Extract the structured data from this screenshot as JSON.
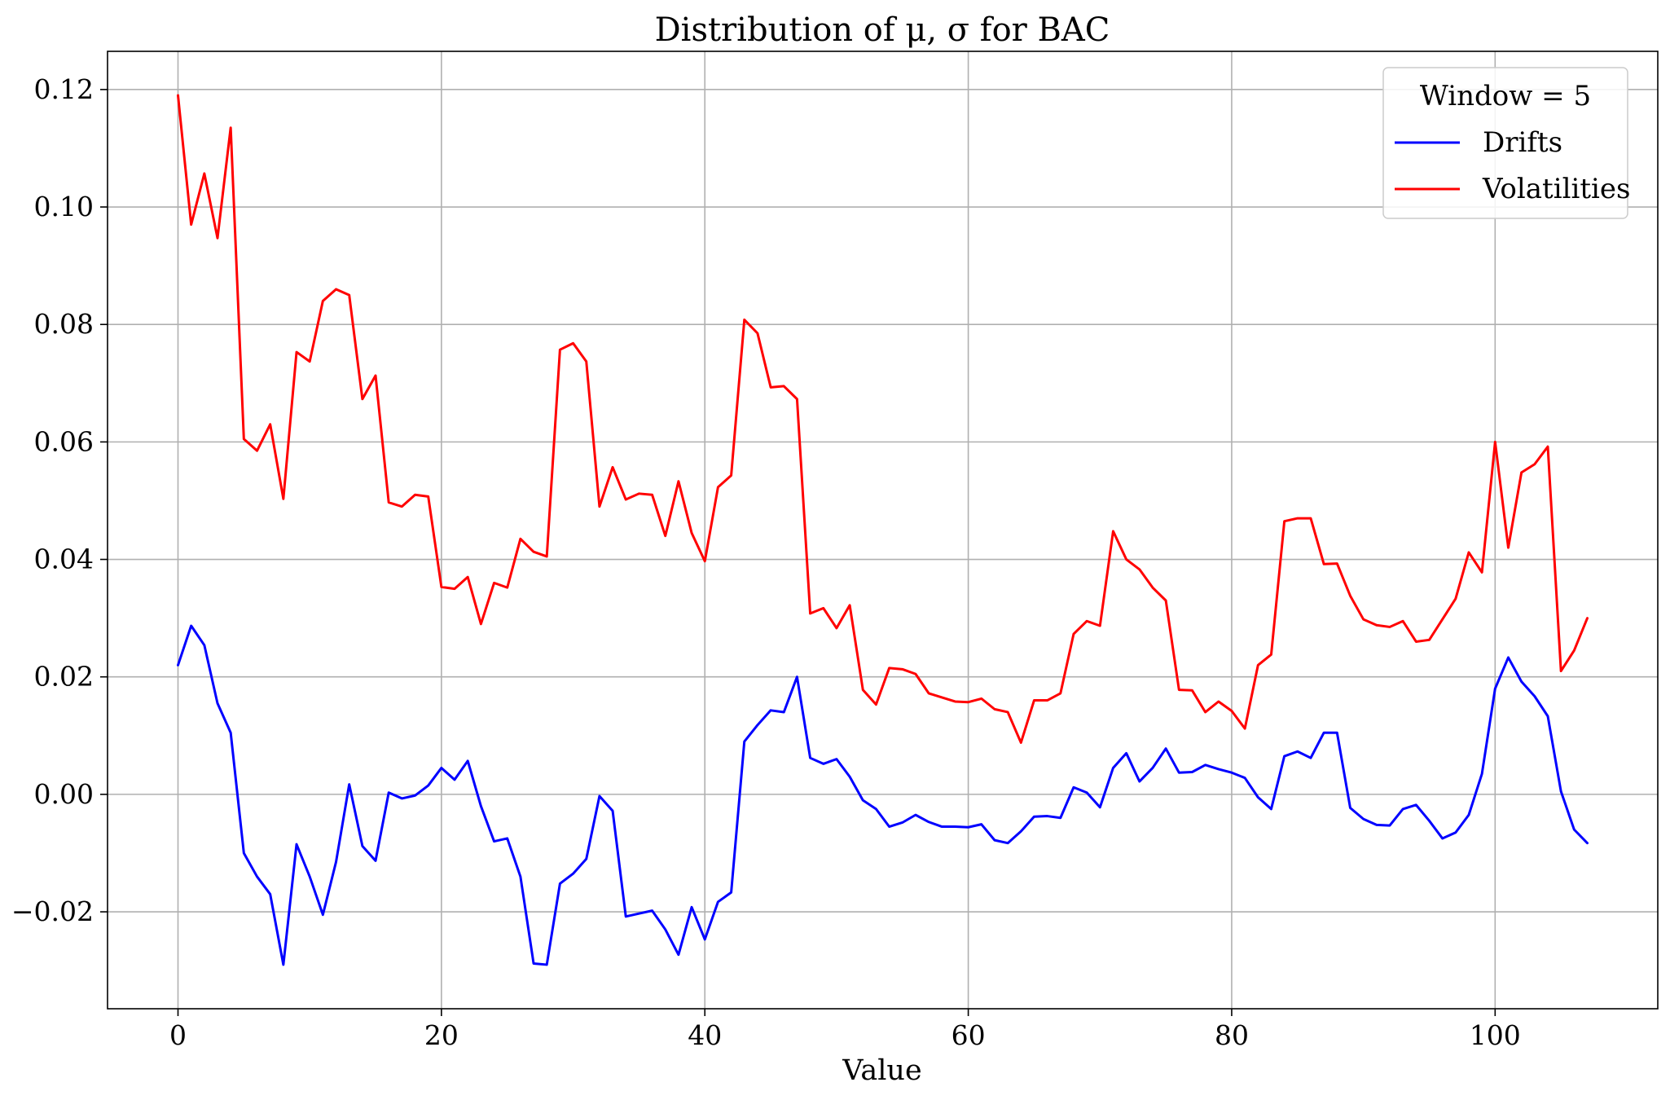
{
  "chart_data": {
    "type": "line",
    "title": "Distribution of μ, σ for BAC",
    "xlabel": "Value",
    "ylabel": "",
    "xlim": [
      -5.35,
      112.35
    ],
    "ylim": [
      -0.0365,
      0.1265
    ],
    "xticks": [
      0,
      20,
      40,
      60,
      80,
      100
    ],
    "yticks": [
      -0.02,
      0.0,
      0.02,
      0.04,
      0.06,
      0.08,
      0.1,
      0.12
    ],
    "ytick_labels": [
      "−0.02",
      "0.00",
      "0.02",
      "0.04",
      "0.06",
      "0.08",
      "0.10",
      "0.12"
    ],
    "grid": true,
    "legend": {
      "title": "Window = 5",
      "placement": "top-right"
    },
    "series": [
      {
        "name": "Drifts",
        "color": "#0000ff",
        "values": [
          0.022,
          0.0287,
          0.0254,
          0.0155,
          0.0105,
          -0.01,
          -0.014,
          -0.017,
          -0.029,
          -0.0085,
          -0.014,
          -0.0205,
          -0.0115,
          0.0017,
          -0.0088,
          -0.0113,
          0.0003,
          -0.0007,
          -0.0002,
          0.0015,
          0.0045,
          0.0025,
          0.0057,
          -0.002,
          -0.008,
          -0.0075,
          -0.014,
          -0.0288,
          -0.029,
          -0.0152,
          -0.0135,
          -0.011,
          -0.0003,
          -0.0028,
          -0.0208,
          -0.0203,
          -0.0198,
          -0.023,
          -0.0273,
          -0.0192,
          -0.0247,
          -0.0183,
          -0.0167,
          0.009,
          0.0118,
          0.0143,
          0.014,
          0.02,
          0.0062,
          0.0052,
          0.006,
          0.003,
          -0.001,
          -0.0025,
          -0.0055,
          -0.0048,
          -0.0035,
          -0.0047,
          -0.0055,
          -0.0055,
          -0.0056,
          -0.0051,
          -0.0078,
          -0.0083,
          -0.0063,
          -0.0038,
          -0.0037,
          -0.004,
          0.0012,
          0.0003,
          -0.0022,
          0.0045,
          0.007,
          0.0022,
          0.0045,
          0.0078,
          0.0037,
          0.0038,
          0.005,
          0.0043,
          0.0037,
          0.0028,
          -0.0005,
          -0.0025,
          0.0065,
          0.0073,
          0.0062,
          0.0105,
          0.0105,
          -0.0023,
          -0.0042,
          -0.0052,
          -0.0053,
          -0.0025,
          -0.0018,
          -0.0045,
          -0.0075,
          -0.0065,
          -0.0035,
          0.0035,
          0.018,
          0.0233,
          0.0192,
          0.0167,
          0.0133,
          0.0005,
          -0.006,
          -0.0083
        ]
      },
      {
        "name": "Volatilities",
        "color": "#ff0000",
        "values": [
          0.119,
          0.097,
          0.1057,
          0.0947,
          0.1135,
          0.0605,
          0.0585,
          0.063,
          0.0503,
          0.0753,
          0.0737,
          0.084,
          0.086,
          0.085,
          0.0673,
          0.0713,
          0.0497,
          0.049,
          0.051,
          0.0507,
          0.0353,
          0.035,
          0.037,
          0.029,
          0.036,
          0.0352,
          0.0435,
          0.0413,
          0.0405,
          0.0757,
          0.0768,
          0.0737,
          0.049,
          0.0557,
          0.0502,
          0.0512,
          0.051,
          0.044,
          0.0533,
          0.0445,
          0.0397,
          0.0523,
          0.0543,
          0.0808,
          0.0785,
          0.0693,
          0.0695,
          0.0673,
          0.0308,
          0.0317,
          0.0283,
          0.0322,
          0.0178,
          0.0153,
          0.0215,
          0.0213,
          0.0205,
          0.0172,
          0.0165,
          0.0158,
          0.0157,
          0.0163,
          0.0145,
          0.014,
          0.0088,
          0.016,
          0.016,
          0.0172,
          0.0273,
          0.0295,
          0.0287,
          0.0448,
          0.04,
          0.0383,
          0.0352,
          0.033,
          0.0178,
          0.0177,
          0.014,
          0.0158,
          0.0142,
          0.0112,
          0.022,
          0.0238,
          0.0465,
          0.047,
          0.047,
          0.0392,
          0.0393,
          0.0338,
          0.0298,
          0.0288,
          0.0285,
          0.0295,
          0.026,
          0.0263,
          0.0298,
          0.0333,
          0.0412,
          0.0378,
          0.06,
          0.042,
          0.0548,
          0.0562,
          0.0592,
          0.021,
          0.0245,
          0.03
        ]
      }
    ]
  }
}
